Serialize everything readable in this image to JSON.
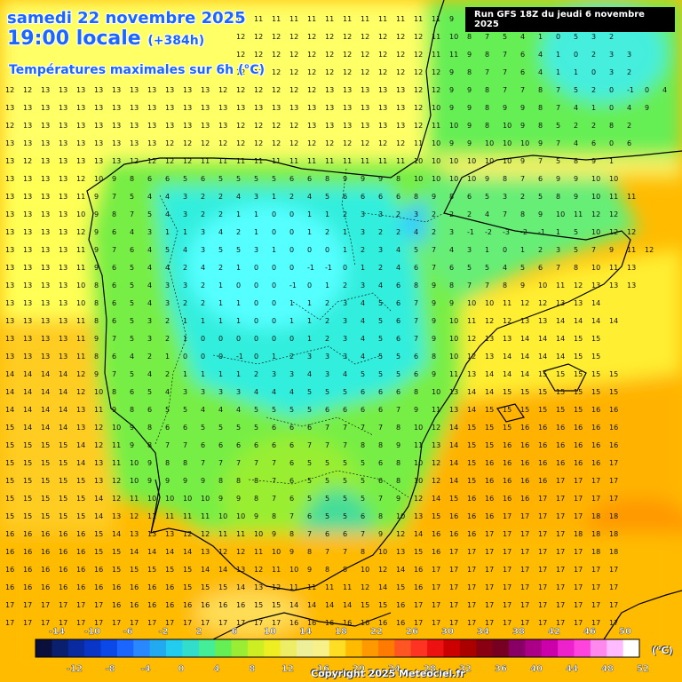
{
  "header": {
    "date_line": "samedi 22 novembre 2025",
    "time_line": "19:00 locale",
    "lead_time": "(+384h)",
    "subtitle": "Températures maximales sur 6h (°C)",
    "run_info": "Run GFS 18Z du jeudi 6 novembre 2025"
  },
  "footer": {
    "copyright": "Copyright 2025 Meteociel.fr",
    "unit": "(°C)"
  },
  "legend": {
    "top_labels": [
      "-14",
      "-10",
      "-6",
      "-2",
      "2",
      "6",
      "10",
      "14",
      "18",
      "22",
      "26",
      "30",
      "34",
      "38",
      "42",
      "46",
      "50"
    ],
    "bottom_labels": [
      "-12",
      "-8",
      "-4",
      "0",
      "4",
      "8",
      "12",
      "16",
      "20",
      "24",
      "28",
      "32",
      "36",
      "40",
      "44",
      "48",
      "52"
    ],
    "colors": [
      "#0a0f3c",
      "#0a1f6e",
      "#0a2aa0",
      "#0a36c8",
      "#0a48e8",
      "#1a66ff",
      "#2a88ff",
      "#22aaf0",
      "#22ccee",
      "#33ddcc",
      "#44ee99",
      "#66ee55",
      "#99ee33",
      "#ccee22",
      "#eeee22",
      "#eeee66",
      "#eef099",
      "#f8f088",
      "#ffdd22",
      "#ffbb00",
      "#ff9900",
      "#ff7a00",
      "#ff5522",
      "#ff3322",
      "#ee1111",
      "#cc0000",
      "#aa0000",
      "#880011",
      "#770022",
      "#880066",
      "#aa0088",
      "#cc00aa",
      "#ee22cc",
      "#ff44dd",
      "#ff88ee",
      "#ffbbff",
      "#ffffff"
    ]
  },
  "colors": {
    "cold": "#22eeff",
    "cool": "#55ee55",
    "mild": "#ffff55",
    "warm": "#ffb300",
    "coast": "#000000"
  },
  "grid_rows": [
    "12 12 12 12 12 12 12 12 12 12 11 11 11 11 11 11 11 11 11 11 11 11 11 11 11 9 9 10 9 9 8 7 7 6 7 7 5 6",
    "12 12 12 12 12 12 12 12 12 12 12 12 12 12 12 12 12 12 12 12 12 12 12 12 11 10 8 7 5 4 1 0 5 3 2",
    "12 12 12 12 12 12 12 12 12 12 12 12 12 12 12 12 12 12 12 12 12 12 12 12 11 11 9 8 7 6 4 1 0 2 3 3",
    "12 12 12 12 12 12 12 12 12 12 12 12 12 12 12 12 12 12 12 12 12 12 12 12 12 9 8 7 7 6 4 1 1 0 3 2",
    "12 12 13 13 13 13 13 13 13 13 13 13 12 12 12 12 12 12 13 13 13 13 13 12 12 9 9 8 7 7 8 7 5 2 0 -1 0 4",
    "13 13 13 13 13 13 13 13 13 13 13 13 13 13 13 13 13 13 13 13 13 13 13 12 10 9 9 8 9 9 8 7 4 1 0 4 9",
    "12 13 13 13 13 13 13 13 13 13 13 13 13 12 12 12 12 13 13 13 13 13 13 12 11 10 9 8 10 9 8 5 2 2 8 2",
    "13 13 13 13 13 13 13 13 13 12 12 12 12 12 12 12 12 12 12 12 12 12 12 11 10 9 9 10 10 10 9 7 4 6 0 6",
    "13 12 13 13 13 13 13 12 12 12 12 11 11 11 11 11 11 11 11 11 11 11 11 10 10 10 10 10 10 9 7 5 8 9 1",
    "13 13 13 13 12 10 9 8 6 6 5 6 5 5 5 5 6 6 8 9 9 9 8 10 10 10 10 9 8 7 6 9 9 10 10",
    "13 13 13 13 11 9 7 5 4 4 3 2 2 4 3 1 2 4 5 6 6 6 6 8 9 8 6 5 3 2 5 8 9 10 11 11",
    "13 13 13 13 10 9 8 7 5 4 3 2 2 1 1 0 0 1 1 2 3 3 2 3 2 2 2 4 7 8 9 10 11 12 12",
    "13 13 13 13 12 9 6 4 3 1 1 3 4 2 1 0 0 1 2 1 3 2 2 4 2 3 -1 -2 -3 -2 -1 1 5 10 12 12",
    "13 13 13 13 11 9 7 6 4 5 4 3 5 5 3 1 0 0 0 1 2 3 4 5 7 4 3 1 0 1 2 3 5 7 9 11 12",
    "13 13 13 13 11 9 6 5 4 4 2 4 2 1 0 0 0 -1 -1 0 1 2 4 6 7 6 5 5 4 5 6 7 8 10 11 13",
    "13 13 13 13 10 8 6 5 4 3 3 2 1 0 0 0 -1 0 1 2 3 4 6 8 9 8 7 7 8 9 10 11 12 13 13 13",
    "13 13 13 13 10 8 6 5 4 3 2 2 1 1 0 0 1 1 2 3 4 5 6 7 9 9 10 10 11 12 12 13 13 14",
    "13 13 13 13 11 8 6 5 3 2 1 1 1 1 0 0 1 1 2 3 4 5 6 7 9 10 11 12 12 13 13 14 14 14 14",
    "13 13 13 13 11 9 7 5 3 2 1 0 0 0 0 0 0 1 2 3 4 5 6 7 9 10 12 13 13 14 14 14 15 15",
    "13 13 13 13 11 8 6 4 2 1 0 0 0 -1 0 1 2 3 3 3 4 5 5 6 8 10 12 13 14 14 14 14 15 15",
    "14 14 14 14 12 9 7 5 4 2 1 1 1 1 2 3 3 4 3 4 5 5 5 6 9 11 13 14 14 14 15 15 15 15 15",
    "14 14 14 14 12 10 8 6 5 4 3 3 3 3 4 4 4 5 5 5 6 6 6 8 10 13 14 14 15 15 15 15 15 15 15",
    "14 14 14 14 13 11 9 8 6 5 5 4 4 4 5 5 5 5 6 6 6 6 7 9 11 13 14 15 15 15 15 15 15 16 16",
    "15 14 14 14 13 12 10 9 8 6 6 5 5 5 5 6 6 6 7 7 7 7 8 10 12 14 15 15 15 16 16 16 16 16 16",
    "15 15 15 15 14 12 11 9 8 7 7 6 6 6 6 6 6 7 7 7 8 8 9 11 13 14 15 15 16 16 16 16 16 16 16",
    "15 15 15 15 14 13 11 10 9 8 8 7 7 7 7 7 6 5 5 5 5 6 8 10 12 14 15 16 16 16 16 16 16 16 17",
    "15 15 15 15 15 13 12 10 9 9 9 9 8 8 8 7 6 5 5 5 5 6 8 10 12 14 15 16 16 16 16 17 17 17 17",
    "15 15 15 15 15 14 12 11 10 10 10 10 9 9 8 7 6 5 5 5 5 7 9 12 14 15 16 16 16 16 17 17 17 17 17",
    "15 15 15 15 15 14 13 12 11 11 11 11 10 10 9 8 7 6 5 5 6 8 10 13 15 16 16 16 17 17 17 17 17 18 18",
    "16 16 16 16 16 15 14 13 13 13 12 12 11 11 10 9 8 7 6 6 7 9 12 14 16 16 16 17 17 17 17 17 18 18 18",
    "16 16 16 16 16 15 15 14 14 14 14 13 12 12 11 10 9 8 7 7 8 10 13 15 16 17 17 17 17 17 17 17 17 18 18",
    "16 16 16 16 16 16 15 15 15 15 15 14 14 13 12 11 10 9 8 8 10 12 14 16 17 17 17 17 17 17 17 17 17 17 17",
    "16 16 16 16 16 16 16 16 16 16 15 15 15 14 13 12 11 11 11 11 12 14 15 16 17 17 17 17 17 17 17 17 17 17 17",
    "17 17 17 17 17 17 16 16 16 16 16 16 16 16 15 15 14 14 14 14 15 15 16 17 17 17 17 17 17 17 17 17 17 17 17",
    "17 17 17 17 17 17 17 17 17 17 17 17 17 17 17 17 16 16 16 16 16 16 16 17 17 17 17 17 17 17 17 17 17 17 17",
    "17 17 17 17 17 17 17 17 17 17 17 17 17 17 17 17 17 17 17 17 17 17 17 17 17 17 17 17 17 17 17 17 17 17 17",
    "17 17 17 17 17 17 17 17 17 17 17 17 17 17 17 17 17 17 17 17 17 17 17 17 17 17 17 17 17 17 17 17 17 17 17"
  ]
}
